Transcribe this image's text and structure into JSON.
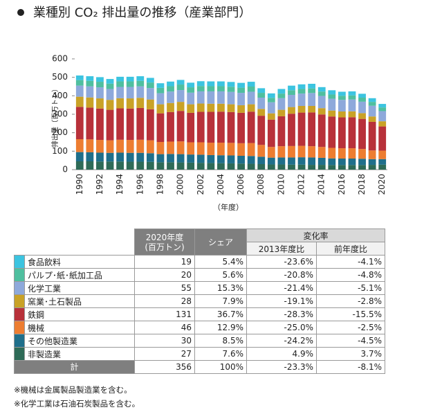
{
  "chart_data": {
    "type": "stacked-bar",
    "title": "業種別 CO₂ 排出量の推移（産業部門）",
    "y_label": "排出量（百万トン）",
    "x_label": "（年度）",
    "categories": [
      "1990",
      null,
      "1992",
      null,
      "1994",
      null,
      "1996",
      null,
      "1998",
      null,
      "2000",
      null,
      "2002",
      null,
      "2004",
      null,
      "2006",
      null,
      "2008",
      null,
      "2010",
      null,
      "2012",
      null,
      "2014",
      null,
      "2016",
      null,
      "2018",
      null,
      "2020"
    ],
    "ylim": [
      0,
      600
    ],
    "yticks": [
      0,
      100,
      200,
      300,
      400,
      500,
      600
    ],
    "grid": false,
    "series": [
      {
        "name": "食品飲料",
        "color": "#3cc4e0",
        "values": [
          25,
          25,
          25,
          25,
          25,
          25,
          25,
          25,
          25,
          25,
          25,
          25,
          26,
          26,
          26,
          26,
          26,
          26,
          25,
          24,
          25,
          25,
          25,
          25,
          24,
          23,
          22,
          22,
          21,
          20,
          19
        ]
      },
      {
        "name": "パルプ･紙･紙加工品",
        "color": "#4fbf9f",
        "values": [
          30,
          30,
          30,
          29,
          30,
          30,
          30,
          30,
          29,
          29,
          30,
          29,
          29,
          28,
          28,
          28,
          28,
          28,
          26,
          24,
          25,
          25,
          25,
          25,
          24,
          23,
          22,
          22,
          22,
          21,
          20
        ]
      },
      {
        "name": "化学工業",
        "color": "#8ea9db",
        "values": [
          60,
          60,
          60,
          59,
          61,
          62,
          62,
          62,
          60,
          62,
          64,
          63,
          66,
          67,
          67,
          67,
          67,
          68,
          61,
          60,
          63,
          66,
          67,
          70,
          66,
          64,
          63,
          64,
          62,
          58,
          55
        ]
      },
      {
        "name": "窯業･土石製品",
        "color": "#c9a227",
        "values": [
          55,
          55,
          55,
          54,
          55,
          55,
          55,
          53,
          49,
          49,
          49,
          46,
          45,
          44,
          43,
          42,
          41,
          40,
          37,
          34,
          35,
          36,
          36,
          35,
          34,
          32,
          32,
          32,
          31,
          29,
          28
        ]
      },
      {
        "name": "鉄鋼",
        "color": "#b8313a",
        "values": [
          175,
          172,
          170,
          165,
          170,
          170,
          172,
          168,
          155,
          160,
          165,
          160,
          165,
          167,
          168,
          167,
          165,
          170,
          158,
          148,
          162,
          175,
          180,
          183,
          176,
          170,
          167,
          168,
          163,
          155,
          131
        ]
      },
      {
        "name": "機械",
        "color": "#ed7d31",
        "values": [
          70,
          70,
          69,
          68,
          70,
          70,
          71,
          70,
          66,
          67,
          69,
          66,
          67,
          67,
          68,
          68,
          68,
          70,
          64,
          58,
          61,
          62,
          62,
          61,
          59,
          57,
          56,
          56,
          53,
          47,
          46
        ]
      },
      {
        "name": "その他製造業",
        "color": "#1f6f8b",
        "values": [
          50,
          49,
          48,
          47,
          48,
          48,
          48,
          47,
          44,
          45,
          45,
          44,
          44,
          43,
          43,
          43,
          42,
          42,
          40,
          37,
          38,
          39,
          40,
          40,
          38,
          36,
          35,
          35,
          34,
          31,
          30
        ]
      },
      {
        "name": "非製造業",
        "color": "#2e6b57",
        "values": [
          45,
          45,
          44,
          44,
          44,
          43,
          43,
          42,
          40,
          40,
          39,
          38,
          37,
          36,
          35,
          34,
          33,
          32,
          30,
          28,
          28,
          27,
          27,
          26,
          26,
          25,
          25,
          25,
          25,
          26,
          27
        ]
      }
    ]
  },
  "table": {
    "header": {
      "value": [
        "2020年度",
        "(百万トン)"
      ],
      "share": "シェア",
      "change": "変化率",
      "vs2013": "2013年度比",
      "vs_prev": "前年度比"
    },
    "rows": [
      [
        "19",
        "5.4%",
        "-23.6%",
        "-4.1%"
      ],
      [
        "20",
        "5.6%",
        "-20.8%",
        "-4.8%"
      ],
      [
        "55",
        "15.3%",
        "-21.4%",
        "-5.1%"
      ],
      [
        "28",
        "7.9%",
        "-19.1%",
        "-2.8%"
      ],
      [
        "131",
        "36.7%",
        "-28.3%",
        "-15.5%"
      ],
      [
        "46",
        "12.9%",
        "-25.0%",
        "-2.5%"
      ],
      [
        "30",
        "8.5%",
        "-24.2%",
        "-4.5%"
      ],
      [
        "27",
        "7.6%",
        "4.9%",
        "3.7%"
      ]
    ],
    "total": [
      "計",
      "356",
      "100%",
      "-23.3%",
      "-8.1%"
    ]
  },
  "notes": [
    "※機械は金属製品製造業を含む。",
    "※化学工業は石油石炭製品を含む。"
  ]
}
